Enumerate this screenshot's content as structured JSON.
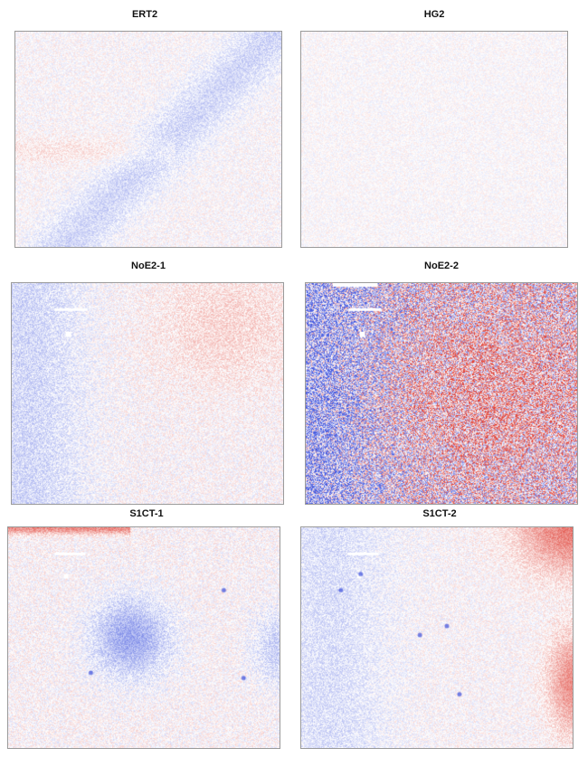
{
  "figure": {
    "panels": [
      {
        "id": "ert2",
        "title": "ERT2",
        "intensity": 0.18,
        "red_bias": 0.02
      },
      {
        "id": "hg2",
        "title": "HG2",
        "intensity": 0.14,
        "red_bias": 0.0
      },
      {
        "id": "noe2-1",
        "title": "NoE2-1",
        "intensity": 0.22,
        "red_bias": 0.05
      },
      {
        "id": "noe2-2",
        "title": "NoE2-2",
        "intensity": 0.95,
        "red_bias": 0.05
      },
      {
        "id": "s1ct-1",
        "title": "S1CT-1",
        "intensity": 0.22,
        "red_bias": 0.08
      },
      {
        "id": "s1ct-2",
        "title": "S1CT-2",
        "intensity": 0.2,
        "red_bias": 0.04
      }
    ],
    "colors": {
      "positive": "#e0443a",
      "negative": "#4a5ee0",
      "background": "#ffffff",
      "frame": "#9a9a9a"
    }
  }
}
